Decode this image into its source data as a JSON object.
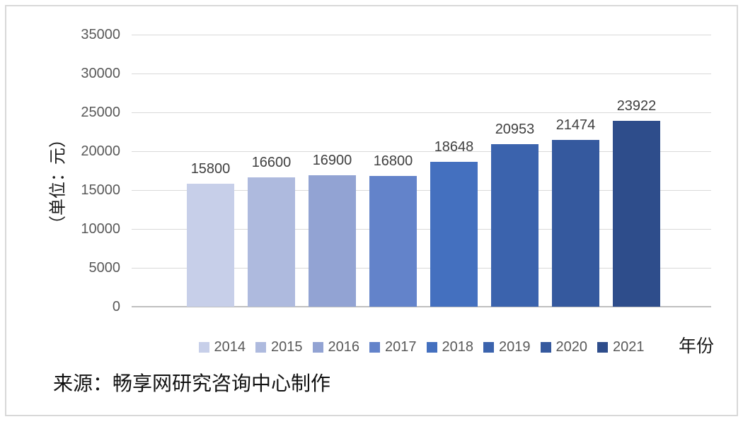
{
  "chart_data": {
    "type": "bar",
    "title": "",
    "categories": [
      "2014",
      "2015",
      "2016",
      "2017",
      "2018",
      "2019",
      "2020",
      "2021"
    ],
    "values": [
      15800,
      16600,
      16900,
      16800,
      18648,
      20953,
      21474,
      23922
    ],
    "bar_colors": [
      "#c7cfe9",
      "#aebade",
      "#92a3d3",
      "#6383ca",
      "#4470bf",
      "#3b63ad",
      "#35599e",
      "#2e4d8b"
    ],
    "data_labels": [
      "15800",
      "16600",
      "16900",
      "16800",
      "18648",
      "20953",
      "21474",
      "23922"
    ],
    "ylabel": "（单位：元）",
    "xlabel": "年份",
    "ylim": [
      0,
      35000
    ],
    "ytick_step": 5000,
    "yticks": [
      "35000",
      "30000",
      "25000",
      "20000",
      "15000",
      "10000",
      "5000",
      "0"
    ],
    "grid": true,
    "legend_position": "bottom"
  },
  "source_note": "来源：畅享网研究咨询中心制作",
  "colors": {
    "gridline": "#d9d9d9",
    "axis_line": "#bfbfbf",
    "tick_text": "#595959",
    "data_label_text": "#404040",
    "legend_text": "#595959",
    "axis_title_text": "#1a1a1a",
    "source_text": "#111111",
    "frame_border": "#d8d8d8",
    "background": "#ffffff"
  }
}
